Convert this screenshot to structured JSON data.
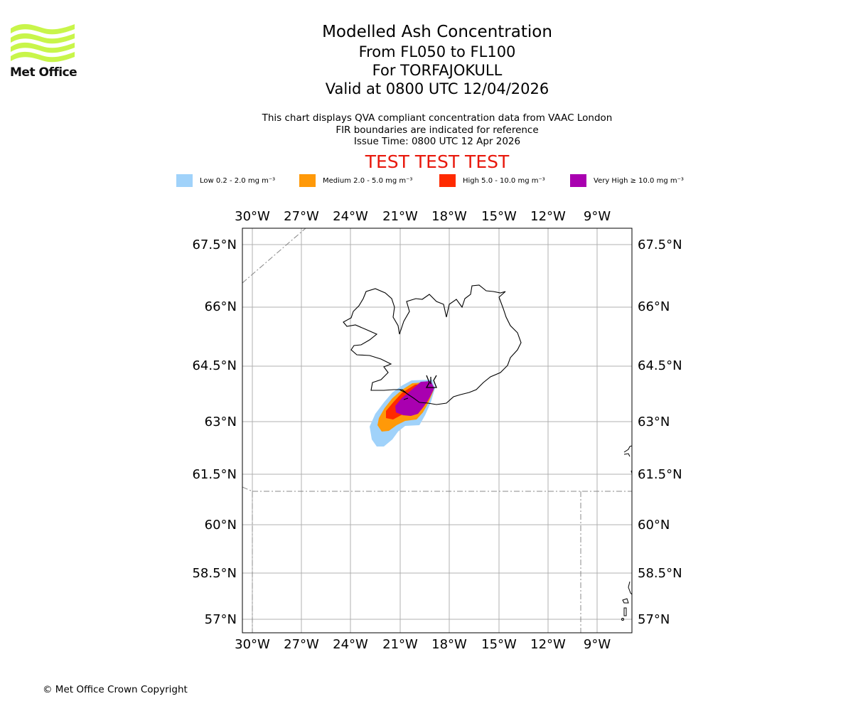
{
  "header": {
    "logo_text": "Met Office",
    "title": "Modelled Ash Concentration",
    "levels": "From FL050 to FL100",
    "volcano": "For TORFAJOKULL",
    "valid": "Valid at 0800 UTC 12/04/2026"
  },
  "info": {
    "line1": "This chart displays QVA compliant concentration data from VAAC London",
    "line2": "FIR boundaries are indicated for reference",
    "line3": "Issue Time: 0800 UTC 12 Apr 2026"
  },
  "banner": "TEST TEST TEST",
  "legend": [
    {
      "label": "Low 0.2 - 2.0 mg m⁻³",
      "color": "#a0d2fa"
    },
    {
      "label": "Medium 2.0 - 5.0 mg m⁻³",
      "color": "#ff9908"
    },
    {
      "label": "High 5.0 - 10.0 mg m⁻³",
      "color": "#ff2a00"
    },
    {
      "label": "Very High ≥ 10.0 mg m⁻³",
      "color": "#a900b0"
    }
  ],
  "map": {
    "lon_ticks": [
      "30°W",
      "27°W",
      "24°W",
      "21°W",
      "18°W",
      "15°W",
      "12°W",
      "9°W"
    ],
    "lat_ticks": [
      "67.5°N",
      "66°N",
      "64.5°N",
      "63°N",
      "61.5°N",
      "60°N",
      "58.5°N",
      "57°N"
    ],
    "lon_range": [
      -30.6,
      -6.8
    ],
    "lat_range": [
      56.6,
      67.9
    ]
  },
  "footer": {
    "copyright": "© Met Office Crown Copyright"
  }
}
